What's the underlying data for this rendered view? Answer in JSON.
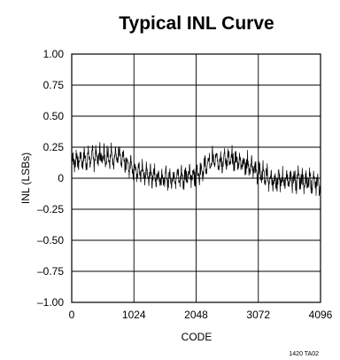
{
  "chart_data": {
    "type": "line",
    "title": "Typical INL Curve",
    "xlabel": "CODE",
    "ylabel": "INL (LSBs)",
    "xlim": [
      0,
      4096
    ],
    "ylim": [
      -1.0,
      1.0
    ],
    "x_ticks": [
      0,
      1024,
      2048,
      3072,
      4096
    ],
    "x_tick_labels": [
      "0",
      "1024",
      "2048",
      "3072",
      "4096"
    ],
    "y_ticks": [
      1.0,
      0.75,
      0.5,
      0.25,
      0,
      -0.25,
      -0.5,
      -0.75,
      -1.0
    ],
    "y_tick_labels": [
      "1.00",
      "0.75",
      "0.50",
      "0.25",
      "0",
      "–0.25",
      "–0.50",
      "–0.75",
      "–1.00"
    ],
    "grid": true,
    "line_color": "#000000",
    "series": [
      {
        "x": [
          0,
          256,
          512,
          768,
          1024,
          1280,
          1536,
          1792,
          2048,
          2304,
          2560,
          2816,
          3072,
          3328,
          3584,
          3840,
          4096
        ],
        "y": [
          0.14,
          0.16,
          0.18,
          0.17,
          0.08,
          0.02,
          0.0,
          0.01,
          0.03,
          0.14,
          0.15,
          0.13,
          0.05,
          -0.02,
          -0.01,
          -0.02,
          -0.05
        ]
      }
    ],
    "figure_id": "1420 TA02"
  }
}
